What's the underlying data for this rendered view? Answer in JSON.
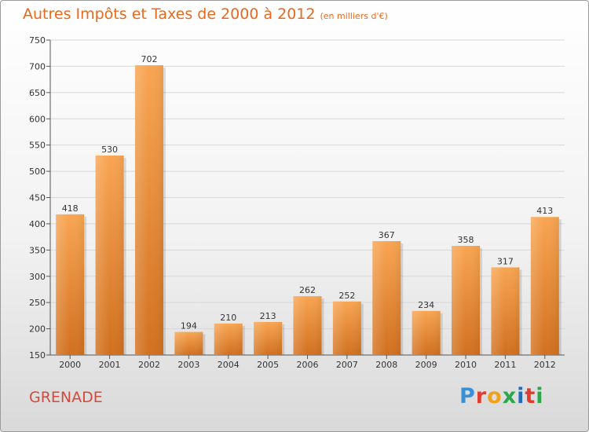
{
  "title": "Autres Impôts et Taxes de 2000 à 2012",
  "subtitle": "(en milliers d'€)",
  "town": "GRENADE",
  "logo": {
    "text": "Proxiti",
    "colors": [
      "#3a8fd6",
      "#e23c2f",
      "#f0a21e",
      "#2aa84a",
      "#1f6fb8",
      "#e23c2f",
      "#2aa84a"
    ]
  },
  "chart_data": {
    "type": "bar",
    "categories": [
      "2000",
      "2001",
      "2002",
      "2003",
      "2004",
      "2005",
      "2006",
      "2007",
      "2008",
      "2009",
      "2010",
      "2011",
      "2012"
    ],
    "values": [
      418,
      530,
      702,
      194,
      210,
      213,
      262,
      252,
      367,
      234,
      358,
      317,
      413
    ],
    "ylim": [
      150,
      750
    ],
    "yticks": [
      150,
      200,
      250,
      300,
      350,
      400,
      450,
      500,
      550,
      600,
      650,
      700,
      750
    ],
    "grid": true,
    "bar_color_light": "#f8a552",
    "bar_color_dark": "#d1701f"
  }
}
